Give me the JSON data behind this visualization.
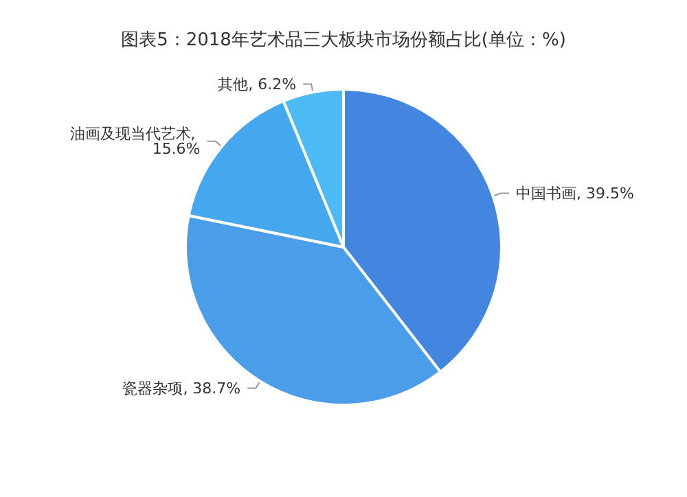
{
  "chart_data": {
    "type": "pie",
    "title": "图表5：2018年艺术品三大板块市场份额占比(单位：%)",
    "categories": [
      "中国书画",
      "瓷器杂项",
      "油画及现当代艺术",
      "其他"
    ],
    "values": [
      39.5,
      38.7,
      15.6,
      6.2
    ],
    "value_labels": [
      ", 39.5%",
      ", 38.7%",
      ", 15.6%",
      ", 6.2%"
    ],
    "colors": [
      "#4286e0",
      "#4a9de8",
      "#45a8ee",
      "#4cbaf5"
    ],
    "legend": false
  }
}
